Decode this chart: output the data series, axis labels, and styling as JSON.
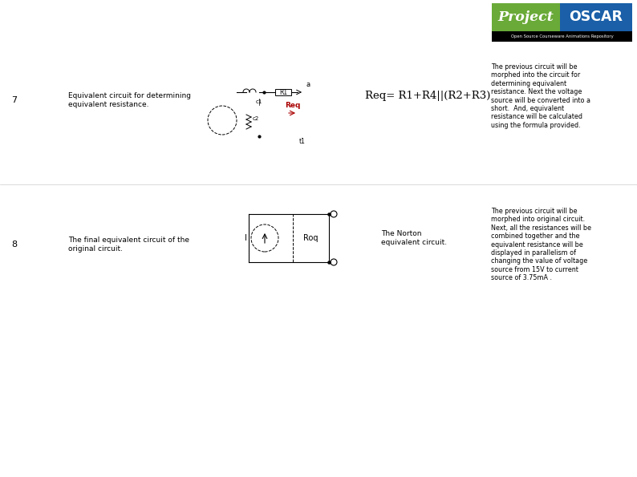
{
  "bg_color": "#ffffff",
  "logo_green": "#6aaa38",
  "logo_blue": "#1a5fa8",
  "req_color": "#aa0000",
  "text_color": "#000000",
  "row7_number": "7",
  "row7_label": "Equivalent circuit for determining\nequivalent resistance.",
  "row7_formula": "Req= R1+R4||(R2+R3)",
  "row7_desc": "The previous circuit will be\nmorphed into the circuit for\ndetermining equivalent\nresistance. Next the voltage\nsource will be converted into a\nshort.  And, equivalent\nresistance will be calculated\nusing the formula provided.",
  "row8_number": "8",
  "row8_label": "The final equivalent circuit of the\noriginal circuit.",
  "row8_norton": "The Norton\nequivalent circuit.",
  "row8_desc": "The previous circuit will be\nmorphed into original circuit.\nNext, all the resistances will be\ncombined together and the\nequivalent resistance will be\ndisplayed in parallelism of\nchanging the value of voltage\nsource from 15V to current\nsource of 3.75mA .",
  "logo_subtitle": "Open Source Courseware Animations Repository",
  "font_size_label": 6.5,
  "font_size_formula": 9.5,
  "font_size_desc": 5.8,
  "font_size_num": 8
}
